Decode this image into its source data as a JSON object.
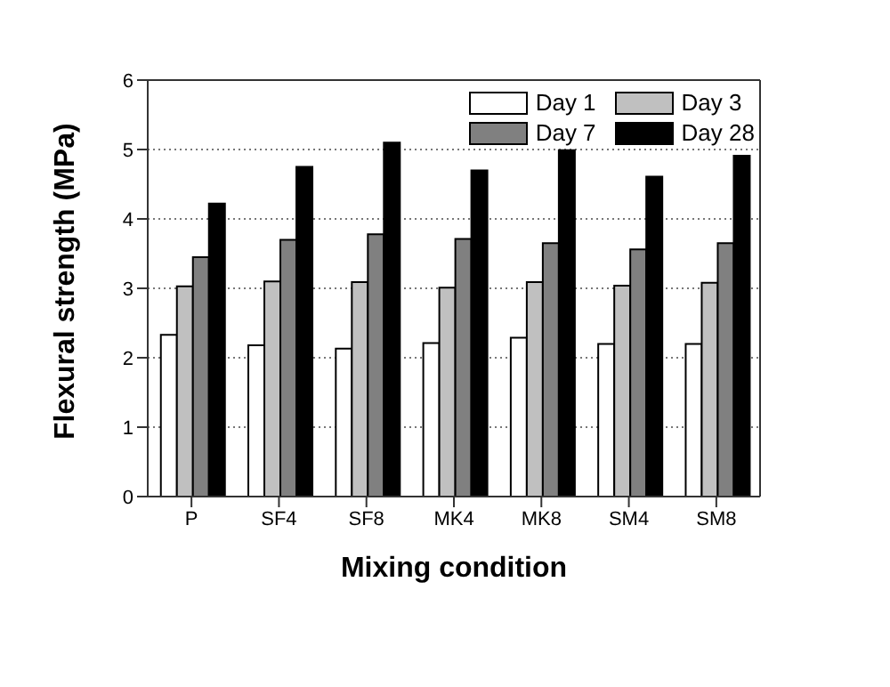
{
  "chart_data": {
    "type": "bar",
    "xlabel": "Mixing condition",
    "ylabel": "Flexural strength (MPa)",
    "categories": [
      "P",
      "SF4",
      "SF8",
      "MK4",
      "MK8",
      "SM4",
      "SM8"
    ],
    "series": [
      {
        "name": "Day 1",
        "color": "#ffffff",
        "values": [
          2.33,
          2.18,
          2.13,
          2.21,
          2.29,
          2.2,
          2.2
        ]
      },
      {
        "name": "Day 3",
        "color": "#c0c0c0",
        "values": [
          3.03,
          3.1,
          3.09,
          3.01,
          3.09,
          3.04,
          3.08
        ]
      },
      {
        "name": "Day 7",
        "color": "#808080",
        "values": [
          3.45,
          3.7,
          3.78,
          3.71,
          3.65,
          3.56,
          3.65
        ]
      },
      {
        "name": "Day 28",
        "color": "#000000",
        "values": [
          4.22,
          4.75,
          5.1,
          4.7,
          4.99,
          4.61,
          4.91
        ]
      }
    ],
    "ylim": [
      0,
      6
    ],
    "yticks": [
      0,
      1,
      2,
      3,
      4,
      5,
      6
    ],
    "grid": "y",
    "legend": "top right"
  }
}
